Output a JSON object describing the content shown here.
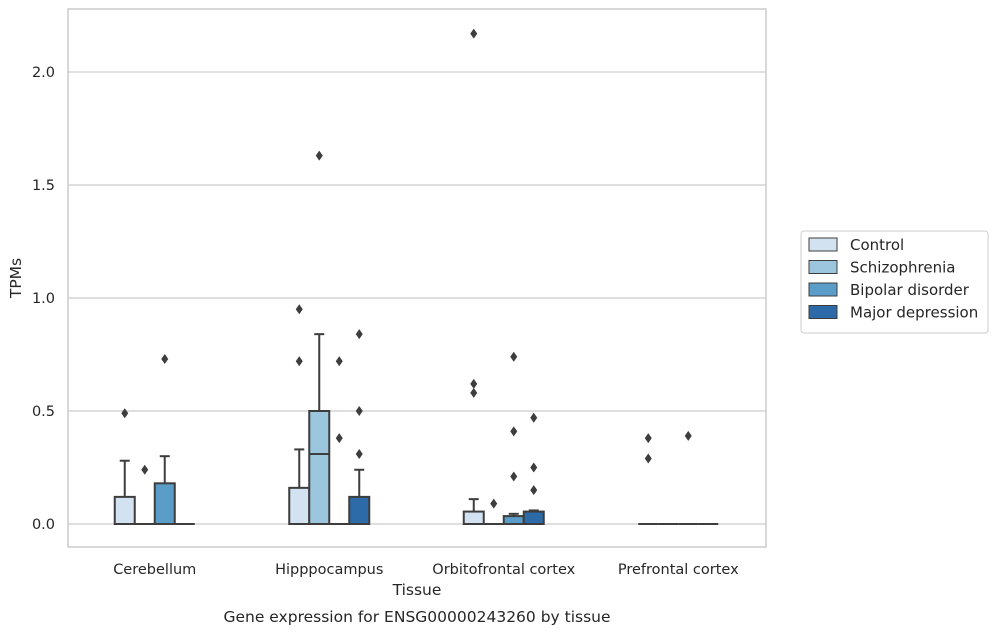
{
  "chart_data": {
    "type": "boxplot",
    "title": "",
    "xlabel": "Tissue",
    "ylabel": "TPMs",
    "caption": "Gene expression for ENSG00000243260 by tissue",
    "ylim": [
      -0.1,
      2.28
    ],
    "yticks": [
      "0.0",
      "0.5",
      "1.0",
      "1.5",
      "2.0"
    ],
    "grid": "horizontal",
    "legend_position": "right",
    "categories": [
      "Cerebellum",
      "Hipppocampus",
      "Orbitofrontal cortex",
      "Prefrontal cortex"
    ],
    "series": [
      {
        "name": "Control",
        "color": "#d3e2f0",
        "boxes": [
          {
            "q1": 0,
            "median": 0,
            "q3": 0.12,
            "whisker_low": 0,
            "whisker_high": 0.28,
            "outliers": [
              0.49
            ]
          },
          {
            "q1": 0,
            "median": 0,
            "q3": 0.16,
            "whisker_low": 0,
            "whisker_high": 0.33,
            "outliers": [
              0.72,
              0.95
            ]
          },
          {
            "q1": 0,
            "median": 0,
            "q3": 0.055,
            "whisker_low": 0,
            "whisker_high": 0.11,
            "outliers": [
              0.58,
              0.62,
              2.17
            ]
          },
          {
            "q1": 0,
            "median": 0,
            "q3": 0,
            "whisker_low": 0,
            "whisker_high": 0,
            "outliers": [
              0.29,
              0.38
            ]
          }
        ]
      },
      {
        "name": "Schizophrenia",
        "color": "#9bc6dd",
        "boxes": [
          {
            "q1": 0,
            "median": 0,
            "q3": 0,
            "whisker_low": 0,
            "whisker_high": 0,
            "outliers": [
              0.24
            ]
          },
          {
            "q1": 0,
            "median": 0.31,
            "q3": 0.5,
            "whisker_low": 0,
            "whisker_high": 0.84,
            "outliers": [
              1.63
            ]
          },
          {
            "q1": 0,
            "median": 0,
            "q3": 0,
            "whisker_low": 0,
            "whisker_high": 0,
            "outliers": [
              0.09
            ]
          },
          {
            "q1": 0,
            "median": 0,
            "q3": 0,
            "whisker_low": 0,
            "whisker_high": 0,
            "outliers": []
          }
        ]
      },
      {
        "name": "Bipolar disorder",
        "color": "#5a9dc9",
        "boxes": [
          {
            "q1": 0,
            "median": 0,
            "q3": 0.18,
            "whisker_low": 0,
            "whisker_high": 0.3,
            "outliers": [
              0.73
            ]
          },
          {
            "q1": 0,
            "median": 0,
            "q3": 0,
            "whisker_low": 0,
            "whisker_high": 0,
            "outliers": [
              0.38,
              0.72
            ]
          },
          {
            "q1": 0,
            "median": 0,
            "q3": 0.035,
            "whisker_low": 0,
            "whisker_high": 0.045,
            "outliers": [
              0.21,
              0.41,
              0.74
            ]
          },
          {
            "q1": 0,
            "median": 0,
            "q3": 0,
            "whisker_low": 0,
            "whisker_high": 0,
            "outliers": [
              0.39
            ]
          }
        ]
      },
      {
        "name": "Major depression",
        "color": "#2d6aa8",
        "boxes": [
          {
            "q1": 0,
            "median": 0,
            "q3": 0,
            "whisker_low": 0,
            "whisker_high": 0,
            "outliers": []
          },
          {
            "q1": 0,
            "median": 0,
            "q3": 0.12,
            "whisker_low": 0,
            "whisker_high": 0.24,
            "outliers": [
              0.31,
              0.5,
              0.84
            ]
          },
          {
            "q1": 0,
            "median": 0,
            "q3": 0.055,
            "whisker_low": 0,
            "whisker_high": 0.06,
            "outliers": [
              0.15,
              0.25,
              0.47
            ]
          },
          {
            "q1": 0,
            "median": 0,
            "q3": 0,
            "whisker_low": 0,
            "whisker_high": 0,
            "outliers": []
          }
        ]
      }
    ]
  }
}
